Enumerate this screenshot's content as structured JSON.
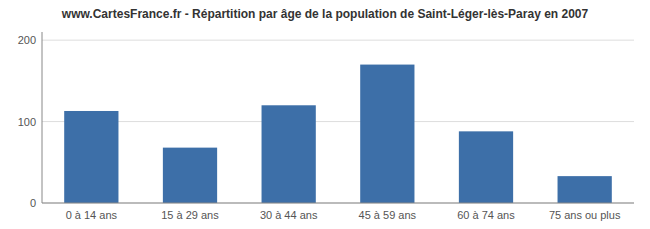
{
  "chart_data": {
    "type": "bar",
    "title": "www.CartesFrance.fr - Répartition par âge de la population de Saint-Léger-lès-Paray en 2007",
    "categories": [
      "0 à 14 ans",
      "15 à 29 ans",
      "30 à 44 ans",
      "45 à 59 ans",
      "60 à 74 ans",
      "75 ans ou plus"
    ],
    "values": [
      113,
      68,
      120,
      170,
      88,
      33
    ],
    "color": "#3d6fa8",
    "ylim": [
      0,
      210
    ],
    "yticks": [
      0,
      100,
      200
    ],
    "grid": true
  }
}
